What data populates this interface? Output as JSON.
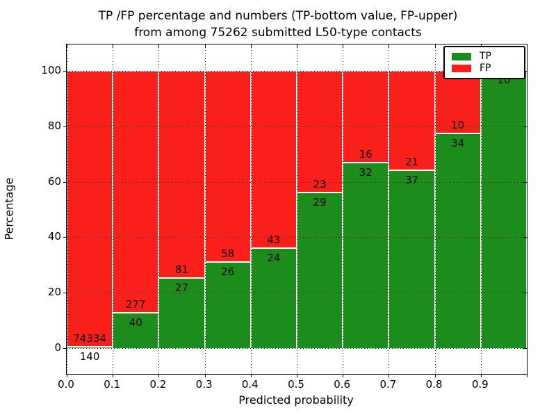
{
  "figure": {
    "title_line1": "TP /FP percentage and numbers (TP-bottom value, FP-upper)",
    "title_line2": "from among 75262 submitted L50-type contacts"
  },
  "legend": {
    "position": "upper right",
    "items": [
      {
        "label": "TP",
        "color": "#1c8c1c"
      },
      {
        "label": "FP",
        "color": "#f91f1a"
      }
    ]
  },
  "chart_data": {
    "type": "bar",
    "stacked": true,
    "orientation": "vertical",
    "title": "TP /FP percentage and numbers (TP-bottom value, FP-upper) from among 75262 submitted L50-type contacts",
    "xlabel": "Predicted probability",
    "ylabel": "Percentage",
    "total_contacts": 75262,
    "xlim": [
      0.0,
      1.0
    ],
    "ylim": [
      -10,
      110
    ],
    "bin_width": 0.1,
    "grid": "dotted",
    "x_tick_labels": [
      "0.0",
      "0.1",
      "0.2",
      "0.3",
      "0.4",
      "0.5",
      "0.6",
      "0.7",
      "0.8",
      "0.9"
    ],
    "y_ticks": [
      0,
      20,
      40,
      60,
      80,
      100
    ],
    "categories": [
      "0.0-0.1",
      "0.1-0.2",
      "0.2-0.3",
      "0.3-0.4",
      "0.4-0.5",
      "0.5-0.6",
      "0.6-0.7",
      "0.7-0.8",
      "0.8-0.9",
      "0.9-1.0"
    ],
    "series": [
      {
        "name": "TP",
        "color": "#1c8c1c",
        "counts": [
          140,
          40,
          27,
          26,
          24,
          29,
          32,
          37,
          34,
          10
        ],
        "percent": [
          0.19,
          12.62,
          25.0,
          30.95,
          35.82,
          55.77,
          66.67,
          63.79,
          77.27,
          100.0
        ]
      },
      {
        "name": "FP",
        "color": "#f91f1a",
        "counts": [
          74334,
          277,
          81,
          58,
          43,
          23,
          16,
          21,
          10,
          0
        ],
        "percent": [
          99.81,
          87.38,
          75.0,
          69.05,
          64.18,
          44.23,
          33.33,
          36.21,
          22.73,
          0.0
        ]
      }
    ],
    "annotation_note": "TP count drawn below each TP/FP boundary, FP count above it; FP label of last bar (0) hidden behind legend"
  }
}
